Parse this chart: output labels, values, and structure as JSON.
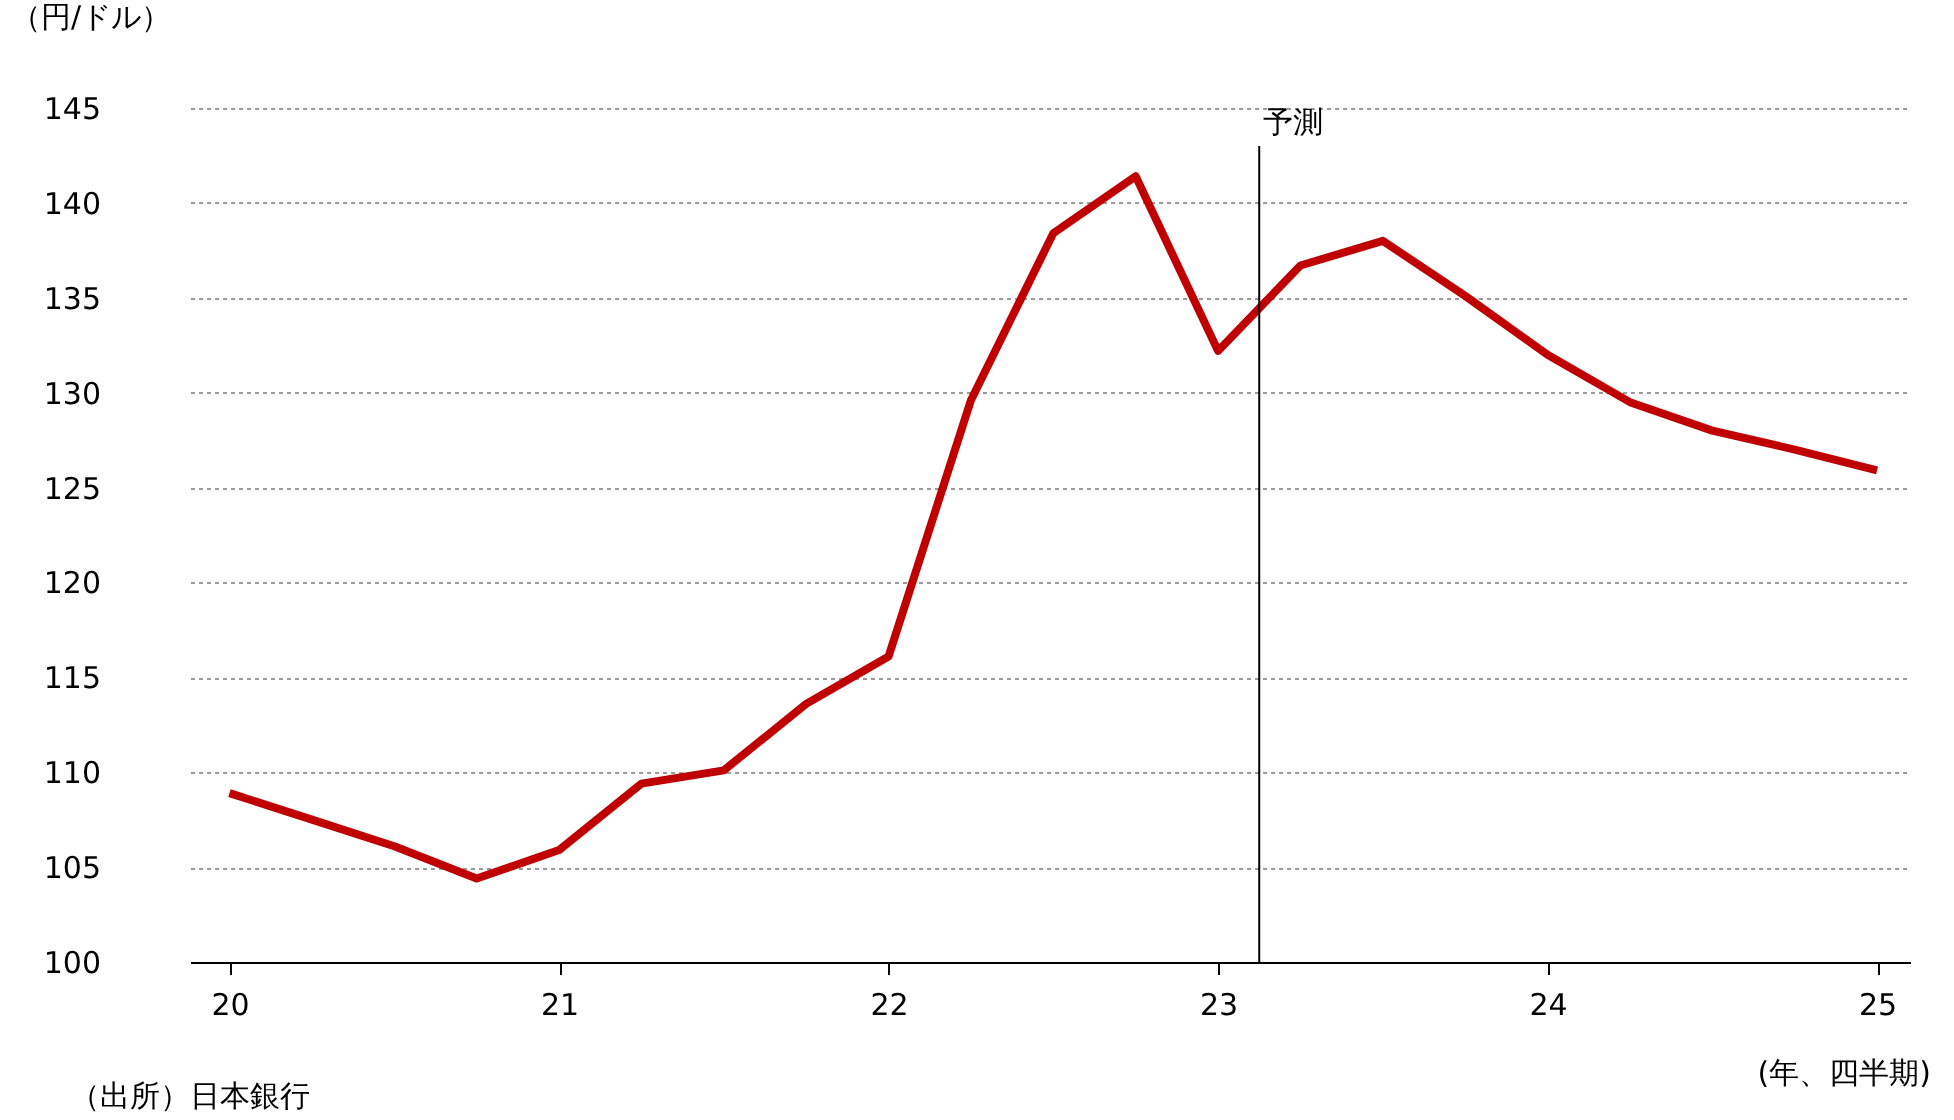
{
  "chart_data": {
    "type": "line",
    "ylabel": "（円/ドル）",
    "xlabel": "(年、四半期)",
    "x": [
      20.0,
      20.25,
      20.5,
      20.75,
      21.0,
      21.25,
      21.5,
      21.75,
      22.0,
      22.25,
      22.5,
      22.75,
      23.0,
      23.25,
      23.5,
      23.75,
      24.0,
      24.25,
      24.5,
      24.75,
      25.0
    ],
    "series": [
      {
        "color": "#c00000",
        "values": [
          108.9,
          107.5,
          106.1,
          104.4,
          105.9,
          109.4,
          110.1,
          113.6,
          116.1,
          129.6,
          138.4,
          141.4,
          132.2,
          136.7,
          138.0,
          135.1,
          132.0,
          129.5,
          128.0,
          127.0,
          125.9
        ]
      }
    ],
    "xlim": [
      19.88,
      25.1
    ],
    "xticks": [
      20,
      21,
      22,
      23,
      24,
      25
    ],
    "ylim": [
      100,
      145
    ],
    "yticks": [
      100,
      105,
      110,
      115,
      120,
      125,
      130,
      135,
      140,
      145
    ],
    "grid": "y",
    "marker": "none",
    "line_style": "solid",
    "ref_lines": [
      {
        "axis": "x",
        "value": 23.125,
        "label": "予測",
        "color": "#000000"
      }
    ],
    "annotations": [
      "（出所）日本銀行"
    ]
  }
}
